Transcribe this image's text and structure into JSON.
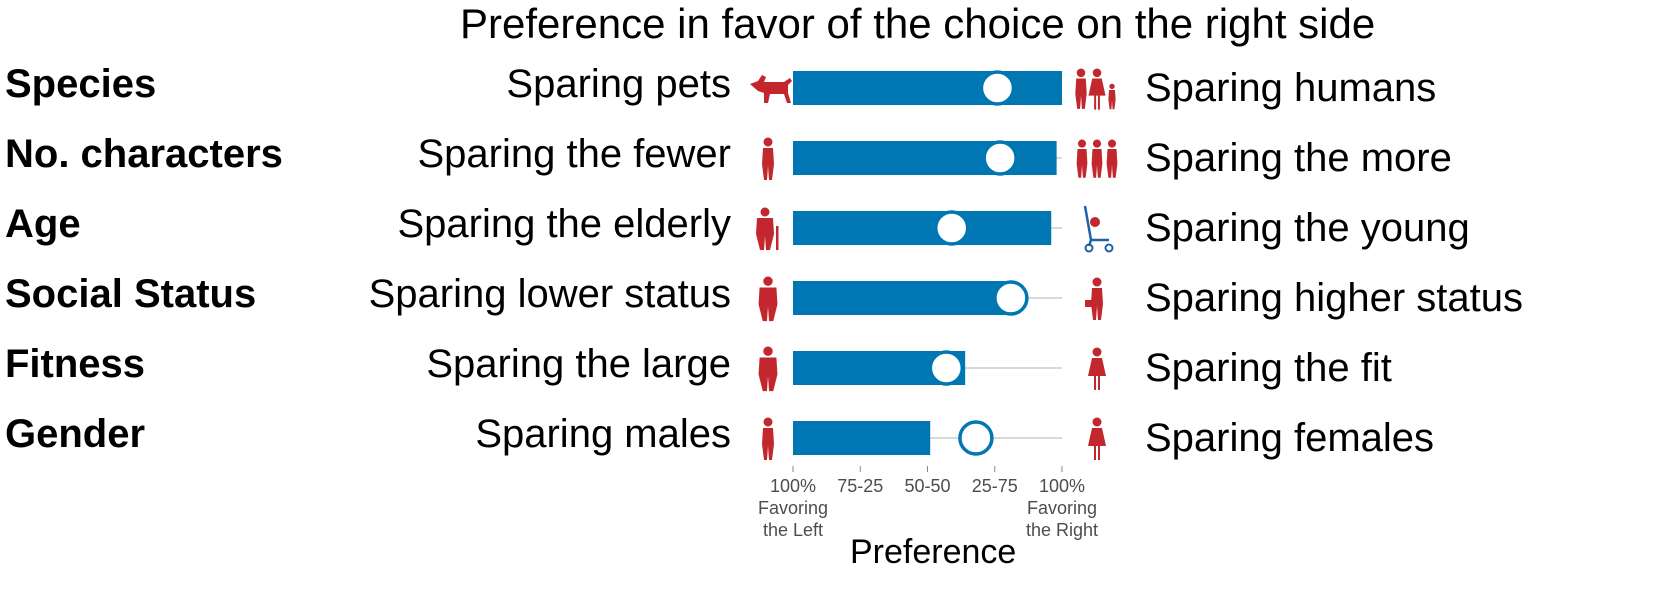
{
  "chart_data": {
    "type": "bar",
    "title": "Preference in favor of the choice on the right side",
    "xlabel": "Preference",
    "ylabel": "",
    "x_ticks": [
      "100%",
      "75-25",
      "50-50",
      "25-75",
      "100%"
    ],
    "x_tick_sublabels": [
      {
        "tick": 0,
        "lines": [
          "Favoring",
          "the Left"
        ]
      },
      {
        "tick": 4,
        "lines": [
          "Favoring",
          "the Right"
        ]
      }
    ],
    "rows": [
      {
        "category": "Species",
        "left": "Sparing pets",
        "right": "Sparing humans",
        "bar": 1.0,
        "point": 0.76
      },
      {
        "category": "No. characters",
        "left": "Sparing the fewer",
        "right": "Sparing the more",
        "bar": 0.98,
        "point": 0.77
      },
      {
        "category": "Age",
        "left": "Sparing the elderly",
        "right": "Sparing the young",
        "bar": 0.96,
        "point": 0.59
      },
      {
        "category": "Social Status",
        "left": "Sparing lower status",
        "right": "Sparing higher status",
        "bar": 0.81,
        "point": 0.81
      },
      {
        "category": "Fitness",
        "left": "Sparing the large",
        "right": "Sparing the fit",
        "bar": 0.64,
        "point": 0.57
      },
      {
        "category": "Gender",
        "left": "Sparing males",
        "right": "Sparing females",
        "bar": 0.51,
        "point": 0.68
      }
    ],
    "colors": {
      "bar": "#0077b3",
      "icon": "#c1272d",
      "track": "#d9d9d9"
    },
    "icons": [
      {
        "left": "dog-icon",
        "right": "family-icon"
      },
      {
        "left": "person-icon",
        "right": "three-people-icon"
      },
      {
        "left": "elderly-person-icon",
        "right": "stroller-icon"
      },
      {
        "left": "homeless-person-icon",
        "right": "executive-icon"
      },
      {
        "left": "large-person-icon",
        "right": "athlete-icon"
      },
      {
        "left": "man-icon",
        "right": "woman-icon"
      }
    ]
  }
}
